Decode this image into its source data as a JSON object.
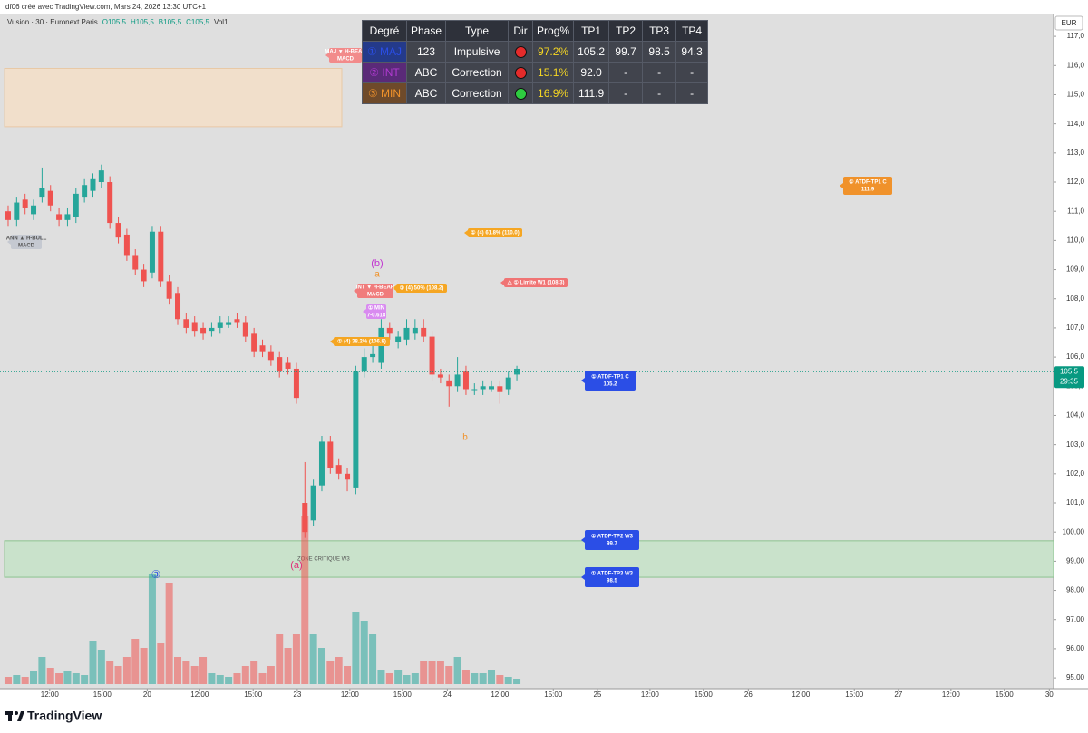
{
  "header": {
    "title": "df06 créé avec TradingView.com, Mars 24, 2026 13:30 UTC+1"
  },
  "chart_data": {
    "type": "candlestick",
    "legend": {
      "symbol": "Vusion · 30 · Euronext Paris",
      "o": "O105,5",
      "h": "H105,5",
      "l": "B105,5",
      "c": "C105,5",
      "vol": "Vol1"
    },
    "currency": "EUR",
    "up_color": "#26a69a",
    "down_color": "#ef5350",
    "open": [
      111.0,
      110.7,
      111.4,
      110.9,
      111.5,
      111.7,
      110.9,
      110.7,
      110.8,
      111.5,
      111.7,
      112.0,
      112.0,
      110.6,
      110.2,
      109.5,
      109.0,
      108.9,
      110.3,
      108.6,
      108.2,
      107.3,
      107.2,
      107.0,
      106.9,
      107.0,
      107.1,
      107.3,
      107.2,
      106.8,
      106.4,
      106.2,
      106.0,
      105.8,
      105.6,
      101.0,
      100.4,
      101.6,
      103.1,
      102.3,
      102.0,
      101.5,
      105.5,
      106.0,
      105.8,
      107.0,
      106.5,
      106.6,
      106.8,
      107.0,
      106.7,
      105.4,
      105.2,
      105.0,
      105.5,
      104.9,
      104.9,
      104.9,
      105.0,
      104.9,
      105.4
    ],
    "high": [
      111.2,
      111.5,
      111.6,
      111.4,
      112.5,
      111.9,
      111.1,
      111.1,
      111.8,
      112.1,
      112.3,
      112.6,
      112.2,
      110.8,
      110.4,
      109.7,
      109.2,
      110.5,
      110.5,
      108.8,
      108.4,
      107.5,
      107.4,
      107.2,
      107.2,
      107.4,
      107.4,
      107.5,
      107.4,
      107.0,
      106.6,
      106.4,
      106.2,
      106.0,
      105.8,
      102.4,
      101.8,
      103.3,
      103.3,
      102.5,
      102.2,
      105.7,
      106.3,
      106.4,
      107.3,
      107.2,
      106.9,
      107.3,
      107.3,
      107.3,
      106.9,
      105.6,
      105.4,
      106.0,
      105.7,
      105.1,
      105.2,
      105.2,
      105.2,
      105.5,
      105.7
    ],
    "low": [
      110.5,
      110.5,
      110.9,
      110.7,
      111.3,
      111.0,
      110.5,
      110.5,
      110.6,
      111.3,
      111.5,
      111.8,
      110.4,
      109.9,
      109.3,
      108.8,
      108.4,
      108.7,
      108.4,
      107.8,
      107.1,
      106.8,
      106.7,
      106.6,
      106.7,
      106.8,
      107.0,
      107.0,
      106.5,
      106.0,
      106.0,
      105.7,
      105.3,
      105.4,
      104.4,
      99.8,
      100.2,
      101.4,
      102.0,
      101.8,
      101.4,
      101.3,
      105.3,
      105.8,
      105.6,
      106.6,
      106.3,
      106.4,
      106.6,
      106.5,
      105.2,
      105.1,
      104.3,
      104.8,
      104.7,
      104.7,
      104.7,
      104.8,
      104.4,
      104.7,
      105.2
    ],
    "close": [
      110.7,
      111.3,
      111.1,
      111.2,
      111.8,
      111.2,
      110.7,
      110.9,
      111.6,
      111.9,
      112.1,
      112.4,
      110.6,
      110.1,
      109.5,
      109.0,
      108.6,
      110.3,
      108.6,
      108.0,
      107.3,
      107.0,
      106.9,
      106.8,
      107.0,
      107.2,
      107.2,
      107.2,
      106.7,
      106.2,
      106.2,
      105.9,
      105.5,
      105.6,
      104.6,
      100.0,
      101.6,
      103.1,
      102.2,
      102.0,
      101.8,
      105.5,
      106.0,
      106.1,
      107.0,
      106.8,
      106.7,
      107.0,
      107.0,
      106.7,
      105.4,
      105.3,
      105.0,
      105.4,
      104.9,
      104.9,
      105.0,
      105.0,
      104.8,
      105.3,
      105.6
    ],
    "volume": [
      8,
      10,
      8,
      14,
      30,
      18,
      12,
      14,
      12,
      10,
      48,
      38,
      25,
      20,
      30,
      50,
      40,
      122,
      45,
      112,
      30,
      25,
      20,
      30,
      12,
      10,
      8,
      12,
      20,
      25,
      12,
      20,
      55,
      40,
      55,
      185,
      55,
      40,
      25,
      30,
      20,
      80,
      70,
      55,
      15,
      12,
      15,
      10,
      12,
      25,
      25,
      25,
      20,
      30,
      15,
      12,
      12,
      15,
      10,
      8,
      6
    ],
    "xlim": [
      -0.96,
      123.3
    ],
    "xticks": [
      {
        "value": 4.9,
        "label": "12:00"
      },
      {
        "value": 11.1,
        "label": "15:00"
      },
      {
        "value": 16.4,
        "label": "20"
      },
      {
        "value": 22.6,
        "label": "12:00"
      },
      {
        "value": 28.9,
        "label": "15:00"
      },
      {
        "value": 34.1,
        "label": "23"
      },
      {
        "value": 40.3,
        "label": "12:00"
      },
      {
        "value": 46.5,
        "label": "15:00"
      },
      {
        "value": 51.8,
        "label": "24"
      },
      {
        "value": 58.0,
        "label": "12:00"
      },
      {
        "value": 64.3,
        "label": "15:00"
      },
      {
        "value": 69.5,
        "label": "25"
      },
      {
        "value": 75.7,
        "label": "12:00"
      },
      {
        "value": 82.0,
        "label": "15:00"
      },
      {
        "value": 87.3,
        "label": "26"
      },
      {
        "value": 93.5,
        "label": "12:00"
      },
      {
        "value": 99.8,
        "label": "15:00"
      },
      {
        "value": 105.0,
        "label": "27"
      },
      {
        "value": 111.2,
        "label": "12:00"
      },
      {
        "value": 117.5,
        "label": "15:00"
      },
      {
        "value": 122.8,
        "label": "30"
      }
    ],
    "ylim": [
      94.63,
      117.78
    ],
    "yticks": [
      {
        "value": 95,
        "label": "95,00"
      },
      {
        "value": 96,
        "label": "96,00"
      },
      {
        "value": 97,
        "label": "97,00"
      },
      {
        "value": 98,
        "label": "98,00"
      },
      {
        "value": 99,
        "label": "99,00"
      },
      {
        "value": 100,
        "label": "100,00"
      },
      {
        "value": 101,
        "label": "101,0"
      },
      {
        "value": 102,
        "label": "102,0"
      },
      {
        "value": 103,
        "label": "103,0"
      },
      {
        "value": 104,
        "label": "104,0"
      },
      {
        "value": 105,
        "label": "105,0"
      },
      {
        "value": 106,
        "label": "106,0"
      },
      {
        "value": 107,
        "label": "107,0"
      },
      {
        "value": 108,
        "label": "108,0"
      },
      {
        "value": 109,
        "label": "109,0"
      },
      {
        "value": 110,
        "label": "110,0"
      },
      {
        "value": 111,
        "label": "111,0"
      },
      {
        "value": 112,
        "label": "112,0"
      },
      {
        "value": 113,
        "label": "113,0"
      },
      {
        "value": 114,
        "label": "114,0"
      },
      {
        "value": 115,
        "label": "115,0"
      },
      {
        "value": 116,
        "label": "116,0"
      },
      {
        "value": 117,
        "label": "117,0"
      }
    ],
    "last": {
      "value": 105.5,
      "label": "105,5",
      "countdown": "29:35",
      "color": "#089981"
    },
    "zones": [
      {
        "top": 115.9,
        "bottom": 113.9,
        "color": "#f5dfc8"
      },
      {
        "label": "ZONE CRITIQUE W3",
        "top": 99.7,
        "bottom": 98.45,
        "color": "#c6e3c8"
      }
    ],
    "callouts": [
      {
        "lines": [
          "① ATDF-TP1 C",
          "111.9"
        ],
        "color": "#f0922b"
      },
      {
        "lines": [
          "① (4) 61.8% (110.0)"
        ],
        "color": "#f5a623"
      },
      {
        "lines": [
          "⚠ ① Limite W1 (108.3)"
        ],
        "color": "#f07474"
      },
      {
        "lines": [
          "① (4) 50% (108.2)"
        ],
        "color": "#f5a623"
      },
      {
        "lines": [
          "① (4) 38.2% (106.8)"
        ],
        "color": "#f5a623"
      },
      {
        "lines": [
          "① ATDF-TP1 C",
          "105.2"
        ],
        "color": "#2b4ee6"
      },
      {
        "lines": [
          "① ATDF-TP2 W3",
          "99.7"
        ],
        "color": "#2b4ee6"
      },
      {
        "lines": [
          "① ATDF-TP3 W3",
          "98.5"
        ],
        "color": "#2b4ee6"
      }
    ],
    "signals": [
      {
        "lines": [
          "ANN ▲ H-BULL",
          "MACD"
        ],
        "color": "#c5c9d1"
      },
      {
        "lines": [
          "MAJ ▼ H-BEAR",
          "MACD"
        ],
        "color": "#f28b8b"
      },
      {
        "lines": [
          "INT ▼ H-BEAR",
          "MACD"
        ],
        "color": "#f07c7c"
      },
      {
        "lines": [
          "① MIN",
          "7-0.618"
        ],
        "color": "#d98bf0"
      }
    ],
    "waves": [
      {
        "text": "(b)",
        "color": "#c030d0"
      },
      {
        "text": "a",
        "color": "#f0922b"
      },
      {
        "text": "b",
        "color": "#f0922b"
      },
      {
        "text": "(a)",
        "color": "#e0307a"
      },
      {
        "text": "③",
        "color": "#2b4ee6"
      }
    ]
  },
  "table": {
    "header": [
      "Degré",
      "Phase",
      "Type",
      "Dir",
      "Prog%",
      "TP1",
      "TP2",
      "TP3",
      "TP4"
    ],
    "rows": [
      {
        "degree": "① MAJ",
        "degree_color": "#2b4ee6",
        "degree_bg": "#243a8a",
        "phase": "123",
        "type": "Impulsive",
        "dir_color": "#e52b2b",
        "prog": "97.2%",
        "tp": [
          "105.2",
          "99.7",
          "98.5",
          "94.3"
        ]
      },
      {
        "degree": "② INT",
        "degree_color": "#b03ad0",
        "degree_bg": "#5a2a78",
        "phase": "ABC",
        "type": "Correction",
        "dir_color": "#e52b2b",
        "prog": "15.1%",
        "tp": [
          "92.0",
          "-",
          "-",
          "-"
        ]
      },
      {
        "degree": "③ MIN",
        "degree_color": "#f0922b",
        "degree_bg": "#6e4a2a",
        "phase": "ABC",
        "type": "Correction",
        "dir_color": "#2ecc40",
        "prog": "16.9%",
        "tp": [
          "111.9",
          "-",
          "-",
          "-"
        ]
      }
    ],
    "prog_color": "#f5d623"
  },
  "footer": {
    "brand": "TradingView"
  }
}
